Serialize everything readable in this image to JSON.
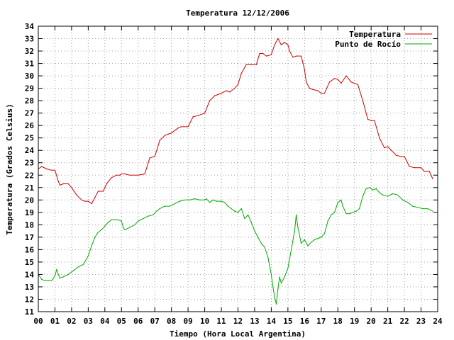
{
  "chart_data": {
    "type": "line",
    "title": "Temperatura 12/12/2006",
    "xlabel": "Tiempo (Hora Local Argentina)",
    "ylabel": "Temperatura (Grados Celsius)",
    "xlim": [
      0,
      24
    ],
    "ylim": [
      11,
      34
    ],
    "x_ticks": [
      "00",
      "01",
      "02",
      "03",
      "04",
      "05",
      "06",
      "07",
      "08",
      "09",
      "10",
      "11",
      "12",
      "13",
      "14",
      "15",
      "16",
      "17",
      "18",
      "19",
      "20",
      "21",
      "22",
      "23",
      "24"
    ],
    "y_ticks": [
      "11",
      "12",
      "13",
      "14",
      "15",
      "16",
      "17",
      "18",
      "19",
      "20",
      "21",
      "22",
      "23",
      "24",
      "25",
      "26",
      "27",
      "28",
      "29",
      "30",
      "31",
      "32",
      "33",
      "34"
    ],
    "grid": true,
    "legend_position": "top-right",
    "series": [
      {
        "name": "Temperatura",
        "color": "#cc0000",
        "x": [
          0.0,
          0.2,
          0.5,
          0.8,
          1.0,
          1.2,
          1.3,
          1.5,
          1.8,
          2.0,
          2.3,
          2.6,
          2.8,
          3.0,
          3.2,
          3.4,
          3.6,
          3.9,
          4.1,
          4.4,
          4.7,
          4.9,
          5.0,
          5.2,
          5.5,
          6.0,
          6.4,
          6.7,
          7.0,
          7.3,
          7.6,
          7.8,
          8.0,
          8.4,
          8.6,
          9.0,
          9.3,
          9.6,
          10.0,
          10.3,
          10.6,
          11.0,
          11.3,
          11.5,
          11.8,
          12.0,
          12.2,
          12.5,
          12.8,
          13.1,
          13.3,
          13.5,
          13.7,
          14.0,
          14.2,
          14.4,
          14.6,
          14.8,
          15.0,
          15.1,
          15.3,
          15.5,
          15.8,
          16.0,
          16.1,
          16.3,
          16.5,
          16.8,
          17.0,
          17.2,
          17.5,
          17.8,
          18.0,
          18.2,
          18.5,
          18.8,
          19.0,
          19.2,
          19.5,
          19.8,
          20.0,
          20.2,
          20.5,
          20.8,
          21.0,
          21.5,
          21.8,
          22.0,
          22.3,
          22.6,
          23.0,
          23.2,
          23.5,
          23.7
        ],
        "values": [
          22.5,
          22.7,
          22.5,
          22.4,
          22.4,
          21.5,
          21.2,
          21.3,
          21.3,
          21.0,
          20.4,
          20.0,
          19.9,
          19.9,
          19.7,
          20.2,
          20.7,
          20.7,
          21.3,
          21.8,
          22.0,
          22.0,
          22.1,
          22.1,
          22.0,
          22.0,
          22.1,
          23.4,
          23.5,
          24.8,
          25.2,
          25.3,
          25.4,
          25.8,
          25.9,
          25.9,
          26.7,
          26.8,
          27.0,
          28.0,
          28.4,
          28.6,
          28.8,
          28.7,
          29.0,
          29.3,
          30.2,
          30.9,
          30.9,
          30.9,
          31.8,
          31.8,
          31.6,
          31.7,
          32.5,
          33.0,
          32.5,
          32.7,
          32.5,
          32.0,
          31.5,
          31.6,
          31.6,
          30.5,
          29.5,
          29.0,
          28.9,
          28.8,
          28.6,
          28.6,
          29.5,
          29.8,
          29.7,
          29.4,
          30.0,
          29.5,
          29.4,
          29.3,
          28.0,
          26.5,
          26.4,
          26.4,
          25.0,
          24.2,
          24.3,
          23.6,
          23.5,
          23.5,
          22.7,
          22.6,
          22.6,
          22.3,
          22.3,
          21.7
        ]
      },
      {
        "name": "Punto de Rocío",
        "color": "#00aa00",
        "x": [
          0.0,
          0.2,
          0.4,
          0.6,
          0.8,
          1.0,
          1.1,
          1.2,
          1.3,
          1.5,
          1.8,
          2.1,
          2.4,
          2.7,
          3.0,
          3.2,
          3.4,
          3.6,
          3.8,
          4.0,
          4.2,
          4.4,
          4.6,
          4.8,
          5.0,
          5.1,
          5.2,
          5.5,
          5.8,
          6.0,
          6.3,
          6.6,
          6.9,
          7.1,
          7.3,
          7.6,
          7.9,
          8.2,
          8.5,
          8.8,
          9.1,
          9.4,
          9.7,
          10.0,
          10.1,
          10.3,
          10.5,
          10.7,
          11.0,
          11.2,
          11.4,
          11.6,
          11.8,
          12.0,
          12.2,
          12.4,
          12.6,
          12.8,
          13.0,
          13.2,
          13.4,
          13.6,
          13.8,
          14.0,
          14.1,
          14.2,
          14.3,
          14.4,
          14.5,
          14.6,
          14.8,
          15.0,
          15.2,
          15.4,
          15.5,
          15.6,
          15.8,
          16.0,
          16.2,
          16.4,
          16.6,
          16.8,
          17.0,
          17.2,
          17.4,
          17.6,
          17.8,
          18.0,
          18.2,
          18.3,
          18.5,
          18.7,
          18.9,
          19.1,
          19.3,
          19.5,
          19.7,
          19.9,
          20.1,
          20.3,
          20.5,
          20.7,
          21.0,
          21.3,
          21.6,
          21.9,
          22.2,
          22.5,
          22.8,
          23.1,
          23.4,
          23.7
        ],
        "values": [
          14.0,
          13.6,
          13.5,
          13.5,
          13.5,
          13.9,
          14.4,
          14.0,
          13.7,
          13.8,
          14.0,
          14.3,
          14.6,
          14.8,
          15.5,
          16.3,
          17.0,
          17.4,
          17.6,
          17.9,
          18.2,
          18.4,
          18.4,
          18.4,
          18.3,
          17.8,
          17.6,
          17.8,
          18.0,
          18.3,
          18.5,
          18.7,
          18.8,
          19.1,
          19.3,
          19.5,
          19.5,
          19.7,
          19.9,
          20.0,
          20.0,
          20.1,
          20.0,
          20.0,
          20.1,
          19.8,
          20.0,
          19.9,
          19.9,
          19.8,
          19.5,
          19.3,
          19.1,
          19.0,
          19.3,
          18.5,
          18.8,
          18.2,
          17.5,
          17.0,
          16.5,
          16.2,
          15.4,
          14.0,
          13.0,
          12.2,
          11.6,
          12.8,
          13.8,
          13.3,
          13.8,
          14.5,
          16.0,
          17.5,
          18.8,
          17.8,
          16.5,
          16.8,
          16.3,
          16.6,
          16.8,
          16.9,
          17.0,
          17.3,
          18.3,
          18.8,
          19.0,
          19.8,
          20.0,
          19.5,
          18.9,
          18.9,
          19.0,
          19.1,
          19.3,
          20.3,
          20.9,
          21.0,
          20.8,
          20.9,
          20.6,
          20.4,
          20.3,
          20.5,
          20.4,
          20.0,
          19.8,
          19.5,
          19.4,
          19.3,
          19.3,
          19.1
        ]
      }
    ]
  }
}
